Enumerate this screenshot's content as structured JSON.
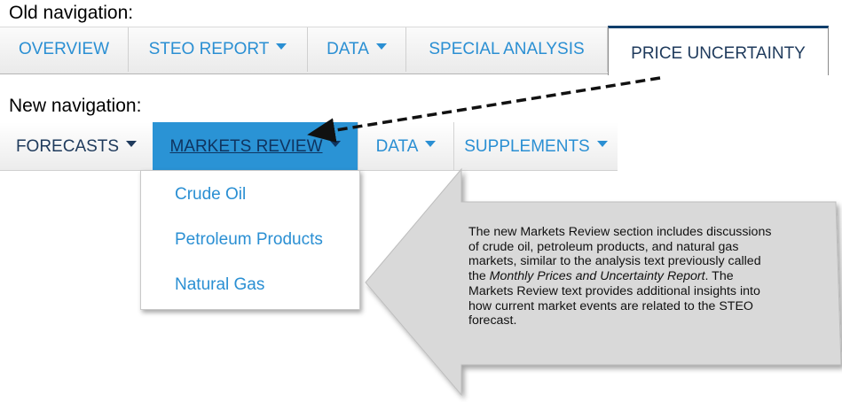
{
  "labels": {
    "old_navigation": "Old navigation:",
    "new_navigation": "New navigation:"
  },
  "old_nav": {
    "tabs": [
      {
        "label": "OVERVIEW",
        "dropdown": false
      },
      {
        "label": "STEO REPORT",
        "dropdown": true
      },
      {
        "label": "DATA",
        "dropdown": true
      },
      {
        "label": "SPECIAL ANALYSIS",
        "dropdown": false
      },
      {
        "label": "PRICE UNCERTAINTY",
        "dropdown": false,
        "active": true
      }
    ]
  },
  "new_nav": {
    "tabs": [
      {
        "label": "FORECASTS",
        "dropdown": true
      },
      {
        "label": "MARKETS REVIEW",
        "dropdown": true,
        "active": true
      },
      {
        "label": "DATA",
        "dropdown": true
      },
      {
        "label": "SUPPLEMENTS",
        "dropdown": true
      }
    ],
    "dropdown_items": [
      "Crude Oil",
      "Petroleum Products",
      "Natural Gas"
    ]
  },
  "callout": {
    "text_1": "The new Markets Review section includes discussions of crude oil, petroleum products, and natural gas markets, similar to the analysis text previously called the ",
    "text_italic": "Monthly Prices and Uncertainty Report",
    "text_2": ". The Markets Review text provides additional insights into how current market events are related to the STEO forecast."
  },
  "colors": {
    "link_blue": "#2a8fd3",
    "dark_navy": "#1e3a5c",
    "active_tab_bg": "#2a93d5",
    "callout_fill": "#d9d9d9"
  }
}
